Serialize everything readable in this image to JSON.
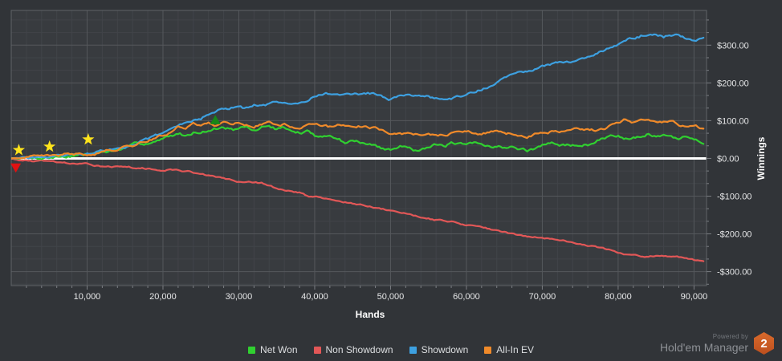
{
  "chart_data": {
    "type": "line",
    "title": "",
    "xlabel": "Hands",
    "ylabel": "Winnings",
    "xlim": [
      0,
      91650
    ],
    "ylim": [
      -337,
      392
    ],
    "x_ticks": [
      10000,
      20000,
      30000,
      40000,
      50000,
      60000,
      70000,
      80000,
      90000
    ],
    "x_tick_labels": [
      "10,000",
      "20,000",
      "30,000",
      "40,000",
      "50,000",
      "60,000",
      "70,000",
      "80,000",
      "90,000"
    ],
    "y_ticks": [
      300,
      200,
      100,
      0,
      -100,
      -200,
      -300
    ],
    "y_tick_labels": [
      "$300.00",
      "$200.00",
      "$100.00",
      "$0.00",
      "-$100.00",
      "-$200.00",
      "-$300.00"
    ],
    "grid": {
      "x_minor_step": 2000,
      "x_major_step": 10000,
      "y_minor_step": 33.333,
      "y_major_step": 100,
      "zero_line": true
    },
    "legend_position": "bottom-center",
    "series": [
      {
        "name": "Net Won",
        "color": "#30d030",
        "x": [
          0,
          2000,
          4000,
          6000,
          8000,
          10000,
          12000,
          14000,
          16000,
          18000,
          20000,
          21000,
          22000,
          23000,
          24000,
          25000,
          26000,
          27000,
          28000,
          29000,
          30000,
          31000,
          32000,
          33000,
          34000,
          35000,
          36000,
          37000,
          38000,
          39000,
          40000,
          41000,
          42000,
          43000,
          44000,
          45000,
          46000,
          47000,
          48000,
          49000,
          50000,
          51000,
          52000,
          53000,
          54000,
          55000,
          56000,
          57000,
          58000,
          59000,
          60000,
          61000,
          62000,
          63000,
          64000,
          65000,
          66000,
          67000,
          68000,
          69000,
          70000,
          71000,
          72000,
          73000,
          74000,
          75000,
          76000,
          77000,
          78000,
          79000,
          80000,
          81000,
          82000,
          83000,
          84000,
          85000,
          86000,
          87000,
          88000,
          89000,
          90000,
          91300
        ],
        "y": [
          0,
          2,
          3,
          5,
          8,
          11,
          16,
          22,
          32,
          42,
          50,
          58,
          65,
          60,
          70,
          74,
          76,
          80,
          84,
          78,
          75,
          80,
          72,
          80,
          88,
          78,
          83,
          70,
          66,
          70,
          58,
          64,
          60,
          52,
          44,
          50,
          42,
          37,
          32,
          25,
          21,
          28,
          33,
          26,
          28,
          33,
          35,
          30,
          38,
          34,
          32,
          38,
          36,
          33,
          34,
          30,
          30,
          24,
          20,
          28,
          35,
          37,
          40,
          33,
          35,
          36,
          38,
          42,
          52,
          58,
          62,
          55,
          60,
          64,
          68,
          59,
          64,
          56,
          48,
          55,
          50,
          44
        ]
      },
      {
        "name": "Non Showdown",
        "color": "#e25757",
        "x": [
          0,
          1000,
          2000,
          4000,
          6000,
          8000,
          10000,
          12000,
          14000,
          15000,
          16000,
          18000,
          20000,
          21000,
          22000,
          23000,
          24000,
          25000,
          26000,
          27000,
          28000,
          29000,
          30000,
          31000,
          32000,
          33000,
          34000,
          35000,
          36000,
          37000,
          38000,
          39000,
          40000,
          42000,
          44000,
          46000,
          48000,
          50000,
          52000,
          54000,
          56000,
          58000,
          60000,
          62000,
          64000,
          66000,
          68000,
          70000,
          72000,
          74000,
          76000,
          78000,
          80000,
          82000,
          83000,
          84000,
          86000,
          88000,
          90000,
          91300
        ],
        "y": [
          0,
          -5,
          -6,
          -8,
          -11,
          -14,
          -17,
          -19,
          -22,
          -24,
          -26,
          -28,
          -32,
          -30,
          -31,
          -34,
          -37,
          -42,
          -46,
          -50,
          -54,
          -58,
          -62,
          -63,
          -64,
          -66,
          -72,
          -80,
          -85,
          -88,
          -92,
          -98,
          -102,
          -108,
          -116,
          -124,
          -133,
          -140,
          -146,
          -154,
          -162,
          -168,
          -175,
          -182,
          -192,
          -200,
          -206,
          -210,
          -216,
          -222,
          -229,
          -239,
          -248,
          -256,
          -262,
          -258,
          -260,
          -263,
          -271,
          -274
        ]
      },
      {
        "name": "Showdown",
        "color": "#3da0e0",
        "x": [
          0,
          2000,
          4000,
          6000,
          8000,
          10000,
          12000,
          14000,
          16000,
          18000,
          20000,
          21000,
          22000,
          23000,
          24000,
          25000,
          26000,
          27000,
          28000,
          29000,
          30000,
          31000,
          32000,
          33000,
          34000,
          35000,
          36000,
          37000,
          38000,
          39000,
          40000,
          41000,
          42000,
          43000,
          44000,
          45000,
          46000,
          47000,
          48000,
          49000,
          50000,
          51000,
          52000,
          53000,
          54000,
          55000,
          56000,
          57000,
          58000,
          59000,
          60000,
          61000,
          62000,
          63000,
          64000,
          65000,
          66000,
          67000,
          68000,
          69000,
          70000,
          71000,
          72000,
          73000,
          74000,
          75000,
          76000,
          77000,
          78000,
          79000,
          80000,
          81000,
          82000,
          83000,
          84000,
          85000,
          86000,
          87000,
          88000,
          89000,
          90000,
          91300
        ],
        "y": [
          0,
          1,
          3,
          6,
          9,
          13,
          20,
          26,
          38,
          50,
          65,
          75,
          85,
          95,
          105,
          108,
          118,
          125,
          130,
          133,
          135,
          132,
          138,
          135,
          142,
          145,
          150,
          148,
          154,
          158,
          168,
          170,
          172,
          167,
          166,
          170,
          172,
          174,
          168,
          160,
          155,
          162,
          168,
          166,
          165,
          162,
          158,
          155,
          156,
          162,
          170,
          176,
          184,
          192,
          200,
          210,
          220,
          226,
          232,
          238,
          243,
          248,
          252,
          255,
          258,
          264,
          270,
          278,
          288,
          295,
          303,
          310,
          318,
          325,
          330,
          325,
          320,
          326,
          328,
          318,
          315,
          319
        ]
      },
      {
        "name": "All-In EV",
        "color": "#f08a2a",
        "x": [
          0,
          2000,
          4000,
          6000,
          8000,
          10000,
          12000,
          14000,
          16000,
          18000,
          20000,
          21000,
          22000,
          23000,
          24000,
          25000,
          26000,
          27000,
          28000,
          29000,
          30000,
          31000,
          32000,
          33000,
          34000,
          35000,
          36000,
          37000,
          38000,
          39000,
          40000,
          41000,
          42000,
          43000,
          44000,
          45000,
          46000,
          47000,
          48000,
          49000,
          50000,
          51000,
          52000,
          53000,
          54000,
          55000,
          56000,
          57000,
          58000,
          59000,
          60000,
          61000,
          62000,
          63000,
          64000,
          65000,
          66000,
          67000,
          68000,
          69000,
          70000,
          71000,
          72000,
          73000,
          74000,
          75000,
          76000,
          77000,
          78000,
          79000,
          80000,
          81000,
          82000,
          83000,
          84000,
          85000,
          86000,
          87000,
          88000,
          89000,
          90000,
          91300
        ],
        "y": [
          0,
          2,
          4,
          7,
          10,
          12,
          19,
          25,
          37,
          48,
          60,
          70,
          87,
          84,
          92,
          88,
          94,
          90,
          96,
          92,
          97,
          90,
          85,
          92,
          96,
          90,
          92,
          86,
          82,
          88,
          90,
          86,
          82,
          85,
          84,
          87,
          88,
          84,
          82,
          76,
          69,
          66,
          64,
          62,
          64,
          65,
          60,
          63,
          66,
          68,
          69,
          67,
          65,
          66,
          70,
          68,
          65,
          58,
          56,
          62,
          70,
          72,
          73,
          70,
          72,
          75,
          74,
          73,
          74,
          84,
          93,
          103,
          97,
          100,
          101,
          92,
          95,
          97,
          87,
          82,
          80,
          76
        ]
      }
    ],
    "markers": [
      {
        "shape": "star",
        "color": "#ffe41c",
        "hands": 1000,
        "value": 22
      },
      {
        "shape": "star",
        "color": "#ffe41c",
        "hands": 5050,
        "value": 31
      },
      {
        "shape": "star",
        "color": "#ffe41c",
        "hands": 10150,
        "value": 50
      },
      {
        "shape": "triangle-up",
        "color": "#178717",
        "hands": 26900,
        "value": 101
      },
      {
        "shape": "triangle-down",
        "color": "#e01212",
        "hands": 600,
        "value": -24
      }
    ]
  },
  "legend": {
    "items": [
      {
        "label": "Net Won"
      },
      {
        "label": "Non Showdown"
      },
      {
        "label": "Showdown"
      },
      {
        "label": "All-In EV"
      }
    ]
  },
  "footer": {
    "powered_by": "Powered by",
    "brand": "Hold'em Manager",
    "badge_number": "2"
  },
  "colors": {
    "background": "#313438",
    "plot_background": "#383b3f",
    "grid_minor": "#414449",
    "grid_major": "#55585c",
    "plot_border": "#5f6367",
    "zero_line": "#ffffff",
    "tick_text": "#e6e7e8",
    "axis_title_text": "#ffffff",
    "legend_text": "#dcdee0",
    "tick_mark": "#7a7d82"
  }
}
